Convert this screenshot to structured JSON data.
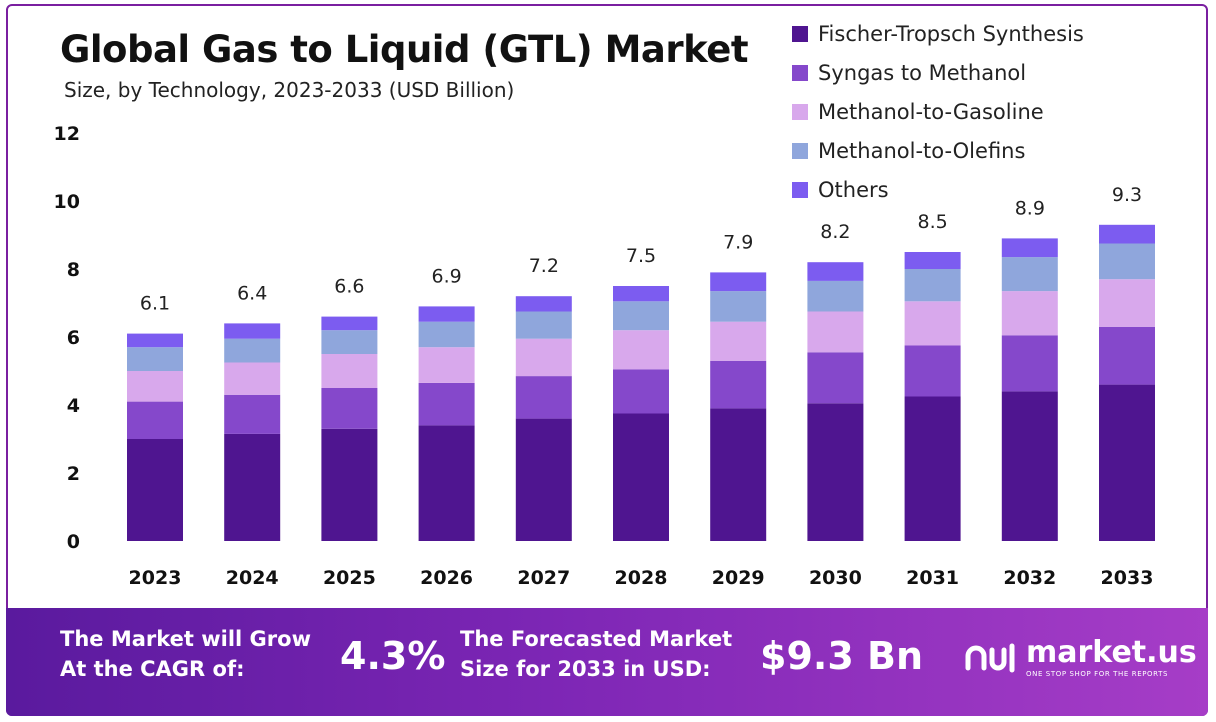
{
  "title": "Global Gas to Liquid (GTL) Market",
  "subtitle": "Size, by Technology, 2023-2033 (USD Billion)",
  "colors": {
    "fischer_tropsch": "#4f1590",
    "syngas_methanol": "#8548cb",
    "methanol_gasoline": "#d8a8ec",
    "methanol_olefins": "#8fa6dc",
    "others": "#7c5cf0",
    "footer_start": "#5a1a9e",
    "footer_end": "#a63dc7"
  },
  "legend": [
    {
      "label": "Fischer-Tropsch Synthesis",
      "color": "#4f1590"
    },
    {
      "label": "Syngas to Methanol",
      "color": "#8548cb"
    },
    {
      "label": "Methanol-to-Gasoline",
      "color": "#d8a8ec"
    },
    {
      "label": "Methanol-to-Olefins",
      "color": "#8fa6dc"
    },
    {
      "label": "Others",
      "color": "#7c5cf0"
    }
  ],
  "chart_data": {
    "type": "bar",
    "stacked": true,
    "title": "Global Gas to Liquid (GTL) Market",
    "subtitle": "Size, by Technology, 2023-2033 (USD Billion)",
    "categories": [
      "2023",
      "2024",
      "2025",
      "2026",
      "2027",
      "2028",
      "2029",
      "2030",
      "2031",
      "2032",
      "2033"
    ],
    "series": [
      {
        "name": "Fischer-Tropsch Synthesis",
        "values": [
          3.0,
          3.15,
          3.3,
          3.4,
          3.6,
          3.75,
          3.9,
          4.05,
          4.25,
          4.4,
          4.6
        ]
      },
      {
        "name": "Syngas to Methanol",
        "values": [
          1.1,
          1.15,
          1.2,
          1.25,
          1.25,
          1.3,
          1.4,
          1.5,
          1.5,
          1.65,
          1.7
        ]
      },
      {
        "name": "Methanol-to-Gasoline",
        "values": [
          0.9,
          0.95,
          1.0,
          1.05,
          1.1,
          1.15,
          1.15,
          1.2,
          1.3,
          1.3,
          1.4
        ]
      },
      {
        "name": "Methanol-to-Olefins",
        "values": [
          0.7,
          0.7,
          0.7,
          0.75,
          0.8,
          0.85,
          0.9,
          0.9,
          0.95,
          1.0,
          1.05
        ]
      },
      {
        "name": "Others",
        "values": [
          0.4,
          0.45,
          0.4,
          0.45,
          0.45,
          0.45,
          0.55,
          0.55,
          0.5,
          0.55,
          0.55
        ]
      }
    ],
    "totals": [
      "6.1",
      "6.4",
      "6.6",
      "6.9",
      "7.2",
      "7.5",
      "7.9",
      "8.2",
      "8.5",
      "8.9",
      "9.3"
    ],
    "ylim": [
      0,
      12
    ],
    "yticks": [
      "0",
      "2",
      "4",
      "6",
      "8",
      "10",
      "12"
    ],
    "grid": false,
    "legend_position": "top-right",
    "xlabel": "",
    "ylabel": ""
  },
  "footer": {
    "cagr_label_line1": "The Market will Grow",
    "cagr_label_line2": "At the CAGR of:",
    "cagr_value": "4.3%",
    "forecast_label_line1": "The Forecasted Market",
    "forecast_label_line2": "Size for 2033 in USD:",
    "forecast_value": "$9.3 Bn",
    "logo_name": "market.us",
    "logo_tagline": "ONE STOP SHOP FOR THE REPORTS",
    "logo_icon": "market-us-logo-icon"
  }
}
